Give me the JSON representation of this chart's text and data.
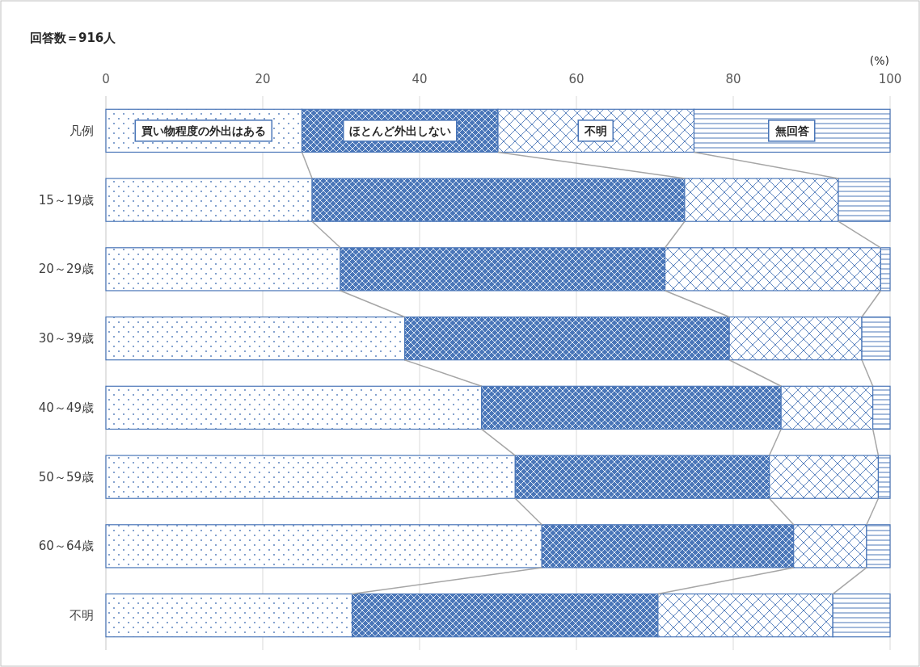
{
  "chart_data": {
    "type": "bar",
    "orientation": "horizontal",
    "stacked": true,
    "title": "回答数＝916人",
    "xlabel": "(%)",
    "categories": [
      "凡例",
      "15～19歳",
      "20～29歳",
      "30～39歳",
      "40～49歳",
      "50～59歳",
      "60～64歳",
      "不明"
    ],
    "series": [
      {
        "name": "買い物程度の外出はある",
        "color": "#4a76b8",
        "values": [
          25,
          26.3,
          29.9,
          38.1,
          47.9,
          52.2,
          55.6,
          31.4
        ]
      },
      {
        "name": "ほとんど外出しない",
        "color": "#4a76b8",
        "values": [
          25,
          47.5,
          41.4,
          41.4,
          38.2,
          32.4,
          32.1,
          39.0
        ]
      },
      {
        "name": "不明",
        "color": "#4a76b8",
        "values": [
          25,
          19.6,
          27.5,
          16.9,
          11.7,
          13.9,
          9.3,
          22.3
        ]
      },
      {
        "name": "無回答",
        "color": "#4a76b8",
        "values": [
          25,
          6.6,
          1.2,
          3.6,
          2.2,
          1.5,
          3.0,
          7.3
        ]
      }
    ],
    "xlim": [
      0,
      100
    ],
    "xticks": [
      0,
      20,
      40,
      60,
      80,
      100
    ],
    "grid": "x",
    "legend": "top"
  }
}
